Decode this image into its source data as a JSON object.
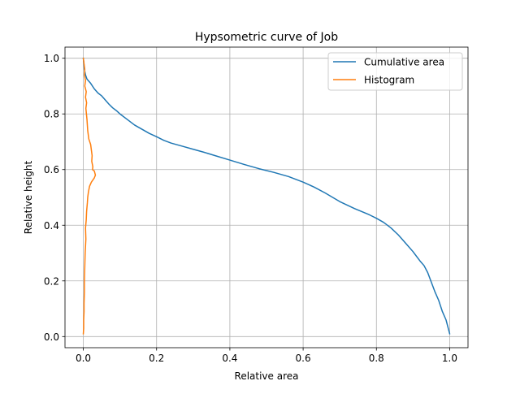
{
  "chart_data": {
    "type": "line",
    "title": "Hypsometric curve of Job",
    "xlabel": "Relative area",
    "ylabel": "Relative height",
    "xlim": [
      -0.05,
      1.05
    ],
    "ylim": [
      -0.04,
      1.04
    ],
    "xticks": [
      0.0,
      0.2,
      0.4,
      0.6,
      0.8,
      1.0
    ],
    "xtick_labels": [
      "0.0",
      "0.2",
      "0.4",
      "0.6",
      "0.8",
      "1.0"
    ],
    "yticks": [
      0.0,
      0.2,
      0.4,
      0.6,
      0.8,
      1.0
    ],
    "ytick_labels": [
      "0.0",
      "0.2",
      "0.4",
      "0.6",
      "0.8",
      "1.0"
    ],
    "grid": true,
    "legend_position": "upper-right",
    "series": [
      {
        "name": "Cumulative area",
        "color": "#1f77b4",
        "x": [
          0.0,
          0.003,
          0.006,
          0.01,
          0.02,
          0.03,
          0.04,
          0.05,
          0.06,
          0.07,
          0.08,
          0.09,
          0.1,
          0.12,
          0.14,
          0.16,
          0.18,
          0.2,
          0.22,
          0.24,
          0.27,
          0.3,
          0.33,
          0.36,
          0.4,
          0.44,
          0.48,
          0.52,
          0.56,
          0.6,
          0.63,
          0.66,
          0.7,
          0.74,
          0.78,
          0.8,
          0.82,
          0.84,
          0.86,
          0.88,
          0.9,
          0.92,
          0.93,
          0.94,
          0.95,
          0.96,
          0.97,
          0.98,
          0.99,
          1.0
        ],
        "y": [
          1.0,
          0.96,
          0.94,
          0.925,
          0.91,
          0.89,
          0.875,
          0.865,
          0.85,
          0.835,
          0.822,
          0.812,
          0.8,
          0.78,
          0.76,
          0.745,
          0.73,
          0.718,
          0.705,
          0.695,
          0.684,
          0.673,
          0.662,
          0.65,
          0.634,
          0.618,
          0.603,
          0.59,
          0.575,
          0.555,
          0.537,
          0.516,
          0.485,
          0.46,
          0.438,
          0.425,
          0.41,
          0.39,
          0.365,
          0.335,
          0.305,
          0.27,
          0.255,
          0.23,
          0.195,
          0.16,
          0.13,
          0.09,
          0.06,
          0.01
        ]
      },
      {
        "name": "Histogram",
        "color": "#ff7f0e",
        "x": [
          0.0,
          0.002,
          0.004,
          0.003,
          0.006,
          0.004,
          0.008,
          0.006,
          0.009,
          0.007,
          0.01,
          0.012,
          0.015,
          0.02,
          0.022,
          0.024,
          0.023,
          0.026,
          0.025,
          0.03,
          0.033,
          0.03,
          0.022,
          0.017,
          0.014,
          0.012,
          0.011,
          0.009,
          0.008,
          0.006,
          0.007,
          0.005,
          0.004,
          0.003,
          0.003,
          0.002,
          0.002,
          0.001,
          0.001,
          0.0
        ],
        "y": [
          1.0,
          0.98,
          0.96,
          0.94,
          0.92,
          0.9,
          0.88,
          0.86,
          0.84,
          0.82,
          0.78,
          0.74,
          0.71,
          0.69,
          0.67,
          0.65,
          0.63,
          0.61,
          0.6,
          0.595,
          0.58,
          0.57,
          0.555,
          0.54,
          0.52,
          0.5,
          0.48,
          0.45,
          0.42,
          0.39,
          0.35,
          0.3,
          0.25,
          0.2,
          0.16,
          0.12,
          0.09,
          0.06,
          0.03,
          0.01
        ]
      }
    ]
  }
}
